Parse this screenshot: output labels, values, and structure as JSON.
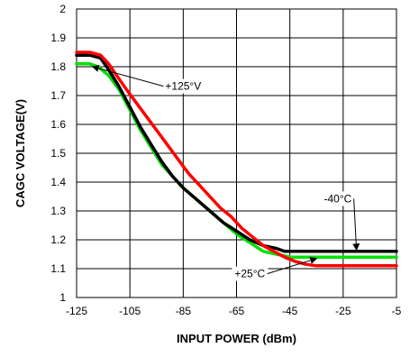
{
  "chart_data": {
    "type": "line",
    "title": "",
    "xlabel": "INPUT POWER (dBm)",
    "ylabel": "CAGC VOLTAGE(V)",
    "xlim": [
      -125,
      -5
    ],
    "ylim": [
      1,
      2
    ],
    "x_ticks": [
      -125,
      -105,
      -85,
      -65,
      -45,
      -25,
      -5
    ],
    "x_tick_labels": [
      "-125",
      "-105",
      "-85",
      "-65",
      "-45",
      "-25",
      "-5"
    ],
    "y_ticks": [
      1,
      1.1,
      1.2,
      1.3,
      1.4,
      1.5,
      1.6,
      1.7,
      1.8,
      1.9,
      2
    ],
    "y_tick_labels": [
      "1",
      "1.1",
      "1.2",
      "1.3",
      "1.4",
      "1.5",
      "1.6",
      "1.7",
      "1.8",
      "1.9",
      "2"
    ],
    "grid": true,
    "series": [
      {
        "color": "#00e000",
        "x": [
          -125,
          -120,
          -117,
          -113,
          -109,
          -105,
          -101,
          -97,
          -93,
          -89,
          -85,
          -80,
          -75,
          -70,
          -65,
          -60,
          -55,
          -50,
          -45,
          -40,
          -35,
          -30,
          -25,
          -15,
          -5
        ],
        "y": [
          1.81,
          1.81,
          1.8,
          1.77,
          1.72,
          1.65,
          1.58,
          1.52,
          1.46,
          1.42,
          1.38,
          1.34,
          1.3,
          1.26,
          1.22,
          1.19,
          1.16,
          1.15,
          1.14,
          1.14,
          1.14,
          1.14,
          1.14,
          1.14,
          1.14
        ]
      },
      {
        "color": "#000000",
        "x": [
          -125,
          -120,
          -116,
          -113,
          -109,
          -105,
          -101,
          -97,
          -93,
          -89,
          -85,
          -80,
          -75,
          -70,
          -65,
          -60,
          -55,
          -50,
          -47,
          -45,
          -40,
          -30,
          -20,
          -5
        ],
        "y": [
          1.84,
          1.84,
          1.83,
          1.79,
          1.73,
          1.66,
          1.59,
          1.53,
          1.47,
          1.42,
          1.38,
          1.34,
          1.3,
          1.26,
          1.23,
          1.2,
          1.18,
          1.17,
          1.16,
          1.16,
          1.16,
          1.16,
          1.16,
          1.16
        ]
      },
      {
        "color": "#ff0000",
        "x": [
          -125,
          -120,
          -116,
          -113,
          -110,
          -107,
          -103,
          -99,
          -95,
          -91,
          -87,
          -83,
          -79,
          -75,
          -71,
          -67,
          -63,
          -59,
          -55,
          -51,
          -47,
          -43,
          -39,
          -35,
          -30,
          -20,
          -10,
          -5
        ],
        "y": [
          1.85,
          1.85,
          1.84,
          1.81,
          1.77,
          1.73,
          1.68,
          1.63,
          1.58,
          1.53,
          1.48,
          1.43,
          1.39,
          1.35,
          1.31,
          1.28,
          1.24,
          1.21,
          1.18,
          1.16,
          1.14,
          1.125,
          1.115,
          1.11,
          1.11,
          1.11,
          1.11,
          1.11
        ]
      }
    ],
    "annotations": [
      {
        "text": "+125°V",
        "point": [
          -119,
          1.8
        ],
        "anchor": [
          -85,
          1.72
        ]
      },
      {
        "text": "-40°C",
        "point": [
          -20,
          1.165
        ],
        "anchor": [
          -27,
          1.33
        ]
      },
      {
        "text": "+25°C",
        "point": [
          -35,
          1.135
        ],
        "anchor": [
          -60,
          1.07
        ]
      }
    ]
  }
}
